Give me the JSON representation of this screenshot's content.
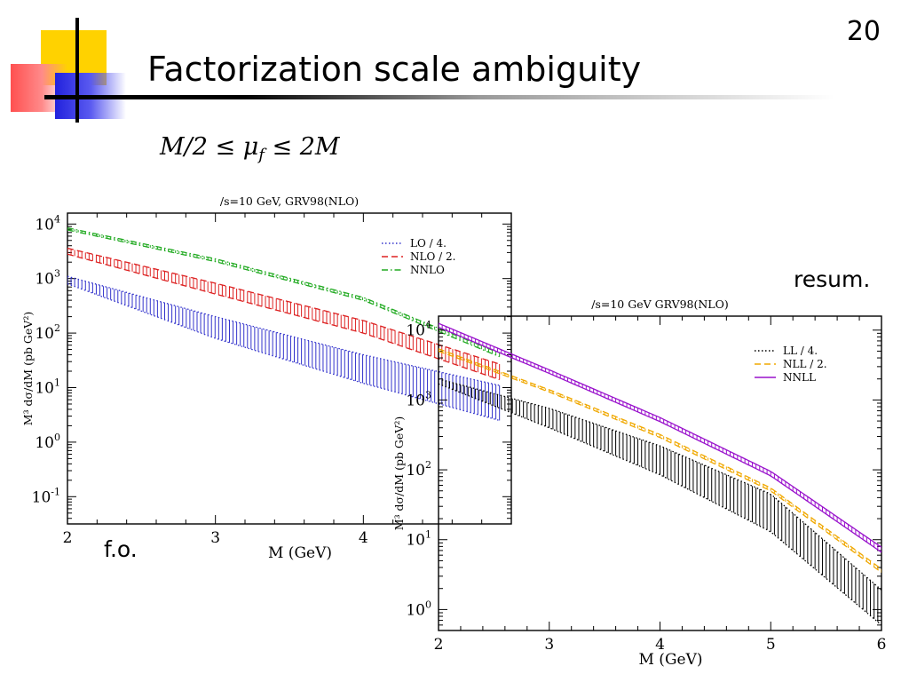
{
  "slide": {
    "page_number": "20",
    "title": "Factorization scale ambiguity",
    "formula": {
      "lhs": "M/2 ≤ μ",
      "sub": "f",
      "rhs": " ≤ 2M"
    },
    "label_left": "f.o.",
    "label_right": "resum."
  },
  "chart_data": [
    {
      "type": "line",
      "title": "/s=10 GeV, GRV98(NLO)",
      "xlabel": "M (GeV)",
      "ylabel": "M³ dσ/dM (pb GeV²)",
      "xlim": [
        2,
        5
      ],
      "ylim_log10": [
        -1.5,
        4.2
      ],
      "yscale": "log",
      "xticks": [
        2,
        3,
        4
      ],
      "yticks_exp": [
        -1,
        0,
        1,
        2,
        3,
        4
      ],
      "legend_position": "top-right",
      "series": [
        {
          "name": "LO / 4.",
          "color": "#3333cc",
          "style": "dotted",
          "x": [
            2,
            3,
            4,
            4.92
          ],
          "y_high": [
            1100,
            200,
            40,
            11
          ],
          "y_low": [
            800,
            80,
            12,
            2.5
          ]
        },
        {
          "name": "NLO / 2.",
          "color": "#dd2222",
          "style": "dashed",
          "x": [
            2,
            3,
            4,
            4.92
          ],
          "y_high": [
            3600,
            820,
            170,
            27
          ],
          "y_low": [
            2800,
            520,
            100,
            14
          ]
        },
        {
          "name": "NNLO",
          "color": "#22aa22",
          "style": "dashdot",
          "x": [
            2,
            3,
            4,
            4.92
          ],
          "y_high": [
            8500,
            2300,
            450,
            43
          ],
          "y_low": [
            7800,
            2050,
            400,
            37
          ]
        }
      ]
    },
    {
      "type": "line",
      "title": "/s=10 GeV GRV98(NLO)",
      "xlabel": "M (GeV)",
      "ylabel": "M³ dσ/dM (pb GeV²)",
      "xlim": [
        2,
        6
      ],
      "ylim_log10": [
        -0.3,
        4.2
      ],
      "yscale": "log",
      "xticks": [
        2,
        3,
        4,
        5,
        6
      ],
      "yticks_exp": [
        0,
        1,
        2,
        3,
        4
      ],
      "legend_position": "top-right",
      "series": [
        {
          "name": "LL / 4.",
          "color": "#000000",
          "style": "dotted",
          "x": [
            2,
            3,
            4,
            5,
            6
          ],
          "y_high": [
            2000,
            760,
            220,
            45,
            1.9
          ],
          "y_low": [
            1700,
            400,
            85,
            13,
            0.6
          ]
        },
        {
          "name": "NLL / 2.",
          "color": "#f0a800",
          "style": "dashed",
          "x": [
            2,
            3,
            4,
            5,
            6
          ],
          "y_high": [
            5400,
            1400,
            320,
            55,
            3.8
          ],
          "y_low": [
            5000,
            1300,
            290,
            50,
            3.4
          ]
        },
        {
          "name": "NNLL",
          "color": "#9911cc",
          "style": "solid",
          "x": [
            2,
            3,
            4,
            5,
            6
          ],
          "y_high": [
            12500,
            2700,
            560,
            95,
            7.8
          ],
          "y_low": [
            11000,
            2400,
            490,
            82,
            6.6
          ]
        }
      ]
    }
  ]
}
